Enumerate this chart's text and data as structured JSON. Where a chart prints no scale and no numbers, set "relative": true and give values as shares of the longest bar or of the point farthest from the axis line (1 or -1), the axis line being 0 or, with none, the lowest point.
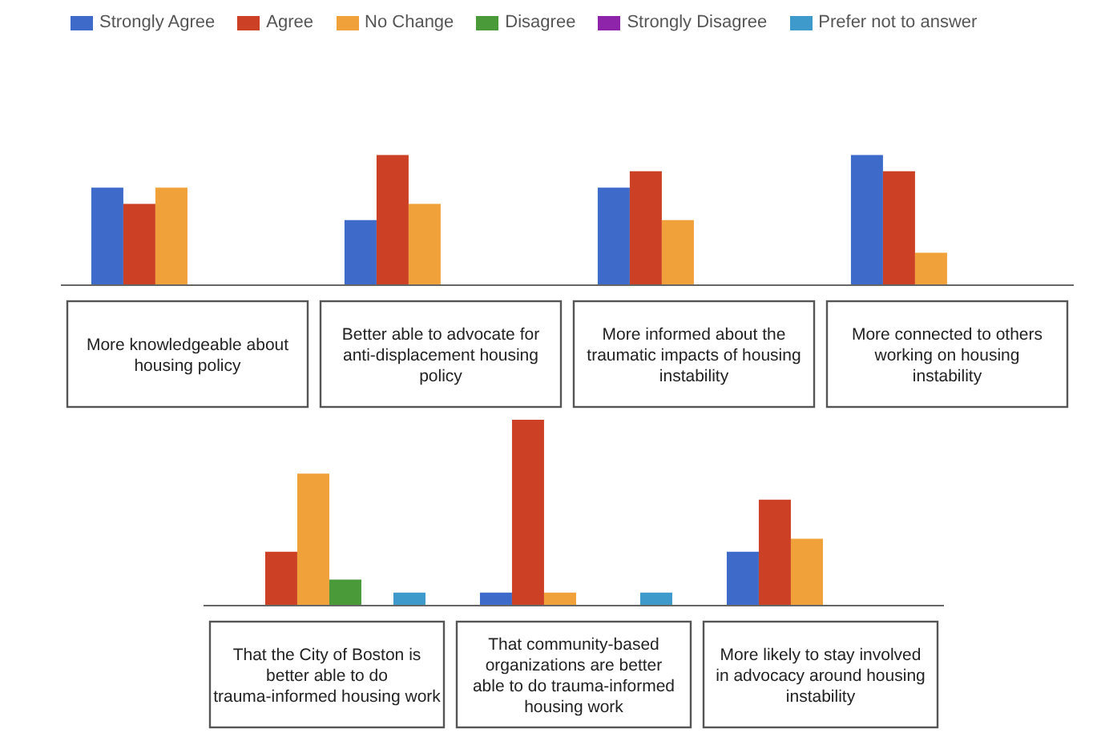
{
  "chart_data": [
    {
      "type": "bar",
      "relative": true,
      "legend": "top",
      "categories": [
        "More knowledgeable about housing policy",
        "Better able to advocate for anti-displacement housing policy",
        "More informed about the traumatic impacts of housing instability",
        "More connected to others working on housing instability"
      ],
      "series": [
        {
          "name": "Strongly Agree",
          "color": "#3e6ac9",
          "values": [
            0.75,
            0.5,
            0.75,
            1
          ]
        },
        {
          "name": "Agree",
          "color": "#cc4125",
          "values": [
            0.625,
            1,
            0.875,
            0.875
          ]
        },
        {
          "name": "No Change",
          "color": "#f1a13a",
          "values": [
            0.75,
            0.625,
            0.5,
            0.25
          ]
        },
        {
          "name": "Disagree",
          "color": "#4a9a3a",
          "values": [
            null,
            null,
            null,
            null
          ]
        },
        {
          "name": "Strongly Disagree",
          "color": "#8e24aa",
          "values": [
            null,
            null,
            null,
            null
          ]
        },
        {
          "name": "Prefer not to answer",
          "color": "#3d9acb",
          "values": [
            null,
            null,
            null,
            null
          ]
        }
      ]
    },
    {
      "type": "bar",
      "relative": true,
      "categories": [
        "That the City of Boston is better able to do trauma-informed housing work",
        "That community-based organizations are better able to do trauma-informed housing work",
        "More likely to stay involved in advocacy around housing instability"
      ],
      "series": [
        {
          "color": "#3e6ac9",
          "values": [
            null,
            0.07,
            0.29
          ]
        },
        {
          "color": "#cc4125",
          "values": [
            0.29,
            1,
            0.57
          ]
        },
        {
          "color": "#f1a13a",
          "values": [
            0.71,
            0.07,
            0.36
          ]
        },
        {
          "color": "#4a9a3a",
          "values": [
            0.14,
            null,
            null
          ]
        },
        {
          "color": "#8e24aa",
          "values": [
            null,
            null,
            null
          ]
        },
        {
          "color": "#3d9acb",
          "values": [
            0.07,
            0.07,
            null
          ]
        }
      ]
    }
  ]
}
